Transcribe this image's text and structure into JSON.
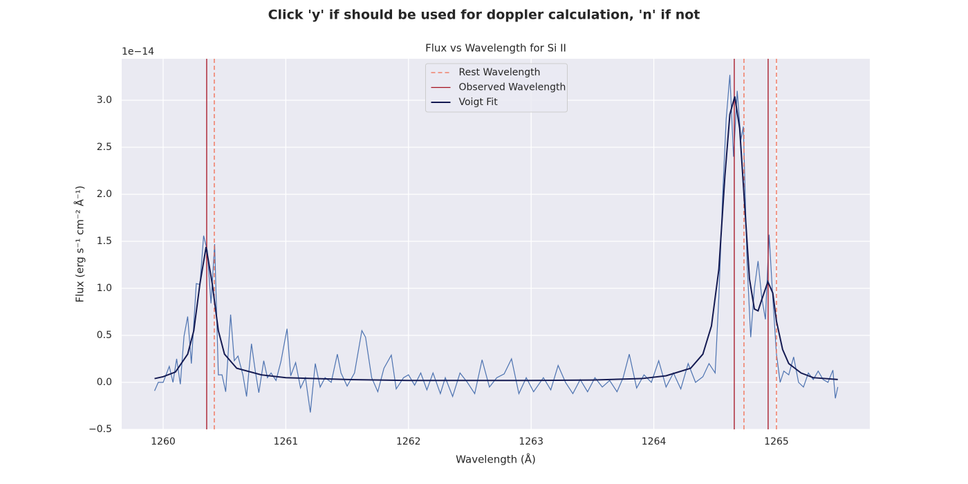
{
  "chart_data": {
    "type": "line",
    "suptitle": "Click 'y' if should be used for doppler calculation, 'n' if not",
    "title": "Flux vs Wavelength for Si II",
    "x_label": "Wavelength (Å)",
    "y_label": "Flux (erg s⁻¹ cm⁻² Å⁻¹)",
    "y_offset_text": "1e−14",
    "xlim": [
      1259.662,
      1265.761
    ],
    "ylim": [
      -0.5,
      3.441
    ],
    "xticks": [
      1260,
      1261,
      1262,
      1263,
      1264,
      1265
    ],
    "yticks": [
      {
        "value": -0.5,
        "label": "−0.5"
      },
      {
        "value": 0,
        "label": "0.0"
      },
      0.5,
      {
        "value": 1,
        "label": "1.0"
      },
      1.5,
      {
        "value": 2,
        "label": "2.0"
      },
      2.5,
      {
        "value": 3,
        "label": "3.0"
      }
    ],
    "grid": true,
    "legend_position": "upper-center",
    "flux": {
      "color": "#4c72b0",
      "x": [
        1259.93,
        1259.96,
        1260.0,
        1260.05,
        1260.08,
        1260.11,
        1260.14,
        1260.17,
        1260.2,
        1260.23,
        1260.27,
        1260.3,
        1260.33,
        1260.36,
        1260.39,
        1260.42,
        1260.45,
        1260.48,
        1260.51,
        1260.55,
        1260.58,
        1260.61,
        1260.65,
        1260.68,
        1260.72,
        1260.75,
        1260.78,
        1260.82,
        1260.85,
        1260.88,
        1260.92,
        1260.96,
        1261.01,
        1261.04,
        1261.08,
        1261.12,
        1261.16,
        1261.2,
        1261.24,
        1261.28,
        1261.32,
        1261.37,
        1261.42,
        1261.45,
        1261.5,
        1261.56,
        1261.62,
        1261.65,
        1261.7,
        1261.75,
        1261.8,
        1261.86,
        1261.9,
        1261.96,
        1262.0,
        1262.05,
        1262.1,
        1262.15,
        1262.2,
        1262.26,
        1262.3,
        1262.36,
        1262.42,
        1262.48,
        1262.54,
        1262.6,
        1262.66,
        1262.72,
        1262.78,
        1262.84,
        1262.9,
        1262.96,
        1263.02,
        1263.1,
        1263.16,
        1263.22,
        1263.28,
        1263.34,
        1263.4,
        1263.46,
        1263.52,
        1263.58,
        1263.64,
        1263.7,
        1263.75,
        1263.8,
        1263.86,
        1263.92,
        1263.98,
        1264.04,
        1264.1,
        1264.16,
        1264.22,
        1264.28,
        1264.34,
        1264.4,
        1264.45,
        1264.5,
        1264.53,
        1264.56,
        1264.59,
        1264.62,
        1264.65,
        1264.68,
        1264.71,
        1264.73,
        1264.76,
        1264.79,
        1264.82,
        1264.85,
        1264.88,
        1264.91,
        1264.94,
        1264.97,
        1265.0,
        1265.03,
        1265.06,
        1265.1,
        1265.14,
        1265.18,
        1265.22,
        1265.26,
        1265.3,
        1265.34,
        1265.38,
        1265.42,
        1265.46,
        1265.48,
        1265.5
      ],
      "values": [
        -0.09,
        0.0,
        0.0,
        0.17,
        0.0,
        0.25,
        -0.02,
        0.49,
        0.7,
        0.2,
        1.05,
        1.04,
        1.56,
        1.4,
        0.84,
        1.47,
        0.08,
        0.08,
        -0.1,
        0.72,
        0.23,
        0.28,
        0.08,
        -0.15,
        0.41,
        0.13,
        -0.11,
        0.23,
        0.05,
        0.1,
        0.02,
        0.22,
        0.57,
        0.07,
        0.21,
        -0.06,
        0.05,
        -0.32,
        0.2,
        -0.05,
        0.05,
        0.0,
        0.3,
        0.1,
        -0.04,
        0.1,
        0.55,
        0.48,
        0.05,
        -0.1,
        0.15,
        0.29,
        -0.07,
        0.05,
        0.08,
        -0.03,
        0.1,
        -0.08,
        0.1,
        -0.12,
        0.05,
        -0.15,
        0.1,
        0.0,
        -0.12,
        0.24,
        -0.05,
        0.05,
        0.09,
        0.25,
        -0.12,
        0.05,
        -0.1,
        0.05,
        -0.08,
        0.18,
        0.0,
        -0.12,
        0.03,
        -0.1,
        0.05,
        -0.05,
        0.02,
        -0.1,
        0.05,
        0.3,
        -0.06,
        0.08,
        0.0,
        0.23,
        -0.05,
        0.1,
        -0.07,
        0.2,
        0.0,
        0.06,
        0.2,
        0.1,
        0.9,
        1.95,
        2.8,
        3.27,
        2.4,
        3.1,
        2.58,
        2.72,
        1.28,
        0.48,
        1.0,
        1.29,
        0.9,
        0.67,
        1.57,
        0.9,
        0.3,
        0.0,
        0.12,
        0.08,
        0.27,
        0.0,
        -0.05,
        0.1,
        0.03,
        0.12,
        0.03,
        0.0,
        0.13,
        -0.17,
        -0.05
      ]
    },
    "vlines": [
      {
        "name": "Rest Wavelength",
        "color": "#f26b4f",
        "dashed": true,
        "x": [
          1260.417,
          1264.735,
          1265.0
        ]
      },
      {
        "name": "Observed Wavelength",
        "color": "#a50f1e",
        "dashed": false,
        "x": [
          1260.355,
          1264.656,
          1264.932
        ]
      }
    ],
    "series": [
      {
        "name": "Voigt Fit",
        "color": "#141a52",
        "x": [
          1259.93,
          1260.0,
          1260.1,
          1260.2,
          1260.25,
          1260.3,
          1260.35,
          1260.4,
          1260.45,
          1260.5,
          1260.6,
          1260.8,
          1261.0,
          1261.5,
          1262.0,
          1262.5,
          1263.0,
          1263.5,
          1263.9,
          1264.1,
          1264.3,
          1264.4,
          1264.47,
          1264.53,
          1264.58,
          1264.62,
          1264.66,
          1264.7,
          1264.74,
          1264.78,
          1264.82,
          1264.85,
          1264.88,
          1264.93,
          1264.97,
          1265.0,
          1265.05,
          1265.1,
          1265.2,
          1265.3,
          1265.5
        ],
        "values": [
          0.04,
          0.06,
          0.11,
          0.3,
          0.55,
          1.05,
          1.44,
          1.05,
          0.55,
          0.3,
          0.15,
          0.08,
          0.05,
          0.03,
          0.02,
          0.02,
          0.02,
          0.025,
          0.04,
          0.07,
          0.15,
          0.3,
          0.6,
          1.2,
          2.2,
          2.85,
          3.04,
          2.7,
          1.9,
          1.1,
          0.78,
          0.76,
          0.88,
          1.07,
          0.95,
          0.65,
          0.35,
          0.2,
          0.1,
          0.05,
          0.03
        ]
      }
    ]
  }
}
